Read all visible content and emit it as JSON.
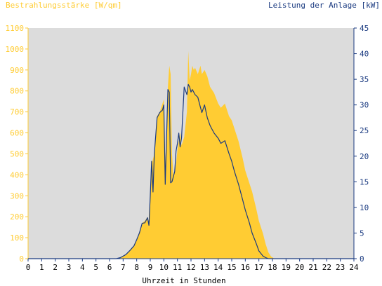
{
  "chart_data": {
    "type": "area",
    "left_title": "Bestrahlungsstärke [W/qm]",
    "right_title": "Leistung der Anlage [kW]",
    "xlabel": "Uhrzeit in Stunden",
    "xlim": [
      0,
      24
    ],
    "left_ylim": [
      0,
      1100
    ],
    "right_ylim": [
      0,
      45
    ],
    "x_ticks": [
      "0",
      "1",
      "2",
      "3",
      "4",
      "5",
      "6",
      "7",
      "8",
      "9",
      "10",
      "11",
      "12",
      "13",
      "14",
      "15",
      "16",
      "17",
      "18",
      "19",
      "20",
      "21",
      "22",
      "23",
      "24"
    ],
    "left_ticks": [
      "0",
      "100",
      "200",
      "300",
      "400",
      "500",
      "600",
      "700",
      "800",
      "900",
      "1000",
      "1100"
    ],
    "right_ticks": [
      "0",
      "5",
      "10",
      "15",
      "20",
      "25",
      "30",
      "35",
      "40",
      "45"
    ],
    "grid": false,
    "colors": {
      "plot_background": "#dcdcdc",
      "irradiance": "#ffcc33",
      "power": "#1a3a80",
      "left_axis": "#ffcc33",
      "right_axis": "#1a3a80"
    },
    "series": [
      {
        "axis": "left",
        "style": "filled-area",
        "x": [
          0,
          6.5,
          6.8,
          7.2,
          7.5,
          7.8,
          8.0,
          8.2,
          8.4,
          8.6,
          8.8,
          8.9,
          9.0,
          9.1,
          9.3,
          9.5,
          9.7,
          9.9,
          10.0,
          10.1,
          10.3,
          10.4,
          10.5,
          10.6,
          10.7,
          10.8,
          10.9,
          11.0,
          11.1,
          11.2,
          11.3,
          11.5,
          11.7,
          11.8,
          11.9,
          12.0,
          12.1,
          12.2,
          12.3,
          12.5,
          12.7,
          12.8,
          13.0,
          13.2,
          13.4,
          13.5,
          13.7,
          14.0,
          14.2,
          14.5,
          14.8,
          15.0,
          15.2,
          15.5,
          15.8,
          16.0,
          16.3,
          16.5,
          16.8,
          17.0,
          17.3,
          17.5,
          17.7,
          17.9,
          18.1,
          18.3,
          24
        ],
        "values": [
          0,
          0,
          5,
          20,
          40,
          60,
          90,
          120,
          170,
          180,
          200,
          160,
          300,
          450,
          500,
          680,
          700,
          740,
          760,
          450,
          820,
          920,
          880,
          500,
          400,
          420,
          450,
          520,
          560,
          600,
          540,
          580,
          700,
          990,
          850,
          880,
          920,
          900,
          910,
          880,
          920,
          880,
          900,
          870,
          820,
          810,
          790,
          740,
          720,
          740,
          680,
          660,
          620,
          560,
          480,
          420,
          360,
          320,
          240,
          180,
          120,
          70,
          30,
          10,
          2,
          0,
          0
        ]
      },
      {
        "axis": "right",
        "style": "line",
        "x": [
          0,
          6.5,
          6.8,
          7.2,
          7.5,
          7.8,
          8.0,
          8.2,
          8.4,
          8.6,
          8.8,
          8.9,
          9.0,
          9.1,
          9.2,
          9.3,
          9.5,
          9.7,
          9.9,
          10.0,
          10.1,
          10.3,
          10.4,
          10.5,
          10.6,
          10.7,
          10.8,
          10.9,
          11.0,
          11.1,
          11.2,
          11.3,
          11.5,
          11.7,
          11.8,
          11.9,
          12.0,
          12.1,
          12.3,
          12.5,
          12.7,
          12.8,
          13.0,
          13.2,
          13.4,
          13.5,
          13.7,
          14.0,
          14.2,
          14.5,
          14.8,
          15.0,
          15.2,
          15.5,
          15.8,
          16.0,
          16.3,
          16.5,
          16.8,
          17.0,
          17.3,
          17.5,
          17.7,
          17.9,
          18.1,
          18.3,
          24
        ],
        "values": [
          0,
          0,
          0.2,
          0.8,
          1.6,
          2.5,
          3.7,
          5.0,
          6.9,
          7.0,
          8.0,
          6.5,
          12.3,
          19.0,
          13.0,
          20.5,
          27.5,
          28.5,
          29.0,
          30.0,
          14.5,
          33.0,
          32.5,
          14.8,
          15.0,
          16.0,
          17.0,
          21.0,
          22.5,
          24.5,
          21.8,
          23.5,
          33.5,
          32.0,
          34.0,
          33.5,
          32.5,
          33.0,
          32.0,
          31.5,
          29.5,
          28.5,
          30.0,
          27.5,
          26.0,
          25.5,
          24.5,
          23.5,
          22.5,
          23.0,
          20.5,
          19.0,
          17.0,
          14.5,
          11.5,
          9.5,
          7.0,
          5.0,
          3.0,
          1.5,
          0.5,
          0.2,
          0.0,
          0,
          0,
          0,
          0
        ]
      }
    ]
  }
}
